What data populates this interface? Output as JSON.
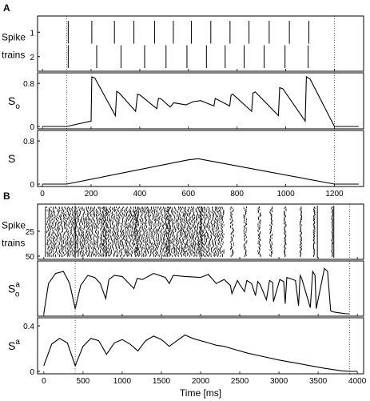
{
  "chart_data": [
    {
      "panel_label": "A",
      "type": "line",
      "xlabel": "",
      "xlim": [
        -20,
        1320
      ],
      "xticks": [
        "0",
        "200",
        "400",
        "600",
        "800",
        "1000",
        "1200"
      ],
      "xtick_values": [
        0,
        200,
        400,
        600,
        800,
        1000,
        1200
      ],
      "reference_lines_x": [
        100,
        1200
      ],
      "panels": [
        {
          "id": "A-spike",
          "type": "raster",
          "ylabel_lines": [
            "Spike",
            "trains"
          ],
          "yticks": [
            "1",
            "2"
          ],
          "trains": {
            "1": [
              106,
              203,
              296,
              376,
              461,
              538,
              612,
              692,
              771,
              849,
              932,
              1015,
              1095
            ],
            "2": [
              106,
              223,
              323,
              420,
              508,
              594,
              674,
              751,
              829,
              911,
              997,
              1092
            ]
          }
        },
        {
          "id": "A-So",
          "type": "line",
          "ylabel": "S",
          "ylabel_sub": "o",
          "ylim": [
            0,
            0.95
          ],
          "yticks": [
            "0",
            "0.8"
          ],
          "x": [
            0,
            100,
            200,
            203,
            215,
            300,
            305,
            316,
            383,
            391,
            402,
            470,
            477,
            488,
            525,
            540,
            590,
            620,
            650,
            705,
            710,
            770,
            775,
            782,
            860,
            865,
            875,
            970,
            975,
            988,
            1080,
            1085,
            1100,
            1200,
            1300
          ],
          "values": [
            0,
            0,
            0.1,
            0.92,
            0.9,
            0.2,
            0.65,
            0.62,
            0.28,
            0.6,
            0.58,
            0.33,
            0.52,
            0.51,
            0.36,
            0.44,
            0.4,
            0.46,
            0.48,
            0.38,
            0.52,
            0.38,
            0.58,
            0.6,
            0.28,
            0.62,
            0.64,
            0.2,
            0.72,
            0.7,
            0.1,
            0.92,
            0.88,
            0,
            0
          ]
        },
        {
          "id": "A-S",
          "type": "line",
          "ylabel": "S",
          "ylim": [
            0,
            0.95
          ],
          "yticks": [
            "0",
            "0.8"
          ],
          "x": [
            0,
            100,
            600,
            640,
            700,
            1200,
            1300
          ],
          "values": [
            0,
            0,
            0.45,
            0.47,
            0.42,
            0,
            0
          ]
        }
      ]
    },
    {
      "panel_label": "B",
      "type": "line",
      "xlabel": "Time  [ms]",
      "xlim": [
        -80,
        4080
      ],
      "xticks": [
        "0",
        "500",
        "1000",
        "1500",
        "2000",
        "2500",
        "3000",
        "3500",
        "4000"
      ],
      "xtick_values": [
        0,
        500,
        1000,
        1500,
        2000,
        2500,
        3000,
        3500,
        4000
      ],
      "reference_lines_x": [
        400,
        3900
      ],
      "panels": [
        {
          "id": "B-spike",
          "type": "raster",
          "ylabel_lines": [
            "Spike",
            "trains"
          ],
          "yticks": [
            "25",
            "50"
          ],
          "n_trains": 50,
          "solid_columns_x": [
            400,
            3490,
            3700
          ],
          "bursts_x": [
            780,
            1180,
            1590,
            2000,
            2400,
            2570,
            2750,
            2900,
            3080,
            3280,
            3450,
            3680
          ]
        },
        {
          "id": "B-Soa",
          "type": "line",
          "ylabel": "S",
          "ylabel_sub": "o",
          "ylabel_sup": "a",
          "ylim": [
            0,
            0.5
          ],
          "x": [
            0,
            60,
            150,
            250,
            330,
            400,
            470,
            560,
            650,
            720,
            790,
            830,
            900,
            1000,
            1150,
            1190,
            1260,
            1400,
            1550,
            1600,
            1650,
            1800,
            2000,
            2100,
            2200,
            2300,
            2380,
            2400,
            2470,
            2500,
            2560,
            2590,
            2650,
            2700,
            2730,
            2760,
            2840,
            2880,
            2920,
            2930,
            3010,
            3060,
            3080,
            3100,
            3210,
            3250,
            3270,
            3290,
            3400,
            3430,
            3460,
            3475,
            3580,
            3620,
            3660,
            3680,
            3760,
            3860,
            3900
          ],
          "values": [
            0,
            0.3,
            0.4,
            0.42,
            0.3,
            0.05,
            0.28,
            0.38,
            0.36,
            0.3,
            0.15,
            0.34,
            0.38,
            0.37,
            0.25,
            0.35,
            0.34,
            0.4,
            0.36,
            0.3,
            0.38,
            0.37,
            0.36,
            0.39,
            0.3,
            0.34,
            0.28,
            0.2,
            0.33,
            0.29,
            0.22,
            0.33,
            0.3,
            0.18,
            0.32,
            0.29,
            0.14,
            0.33,
            0.31,
            0.12,
            0.34,
            0.32,
            0.1,
            0.36,
            0.33,
            0.08,
            0.38,
            0.35,
            0.06,
            0.42,
            0.38,
            0.05,
            0.45,
            0.42,
            0.03,
            0.02,
            0.01,
            0,
            0
          ]
        },
        {
          "id": "B-Sa",
          "type": "line",
          "ylabel": "S",
          "ylabel_sup": "a",
          "ylim": [
            0,
            0.45
          ],
          "yticks": [
            "0",
            "0.4"
          ],
          "x": [
            0,
            100,
            200,
            300,
            400,
            500,
            600,
            700,
            800,
            900,
            1000,
            1100,
            1200,
            1300,
            1400,
            1500,
            1600,
            1700,
            1800,
            1900,
            2000,
            2100,
            2200,
            2300,
            2400,
            2600,
            2800,
            3000,
            3200,
            3400,
            3600,
            3800,
            3900,
            4000
          ],
          "values": [
            0.05,
            0.24,
            0.29,
            0.25,
            0.05,
            0.22,
            0.29,
            0.27,
            0.15,
            0.25,
            0.28,
            0.24,
            0.18,
            0.27,
            0.31,
            0.28,
            0.22,
            0.27,
            0.32,
            0.29,
            0.27,
            0.25,
            0.23,
            0.22,
            0.2,
            0.16,
            0.13,
            0.1,
            0.075,
            0.05,
            0.025,
            0.005,
            0,
            0
          ]
        }
      ]
    }
  ]
}
